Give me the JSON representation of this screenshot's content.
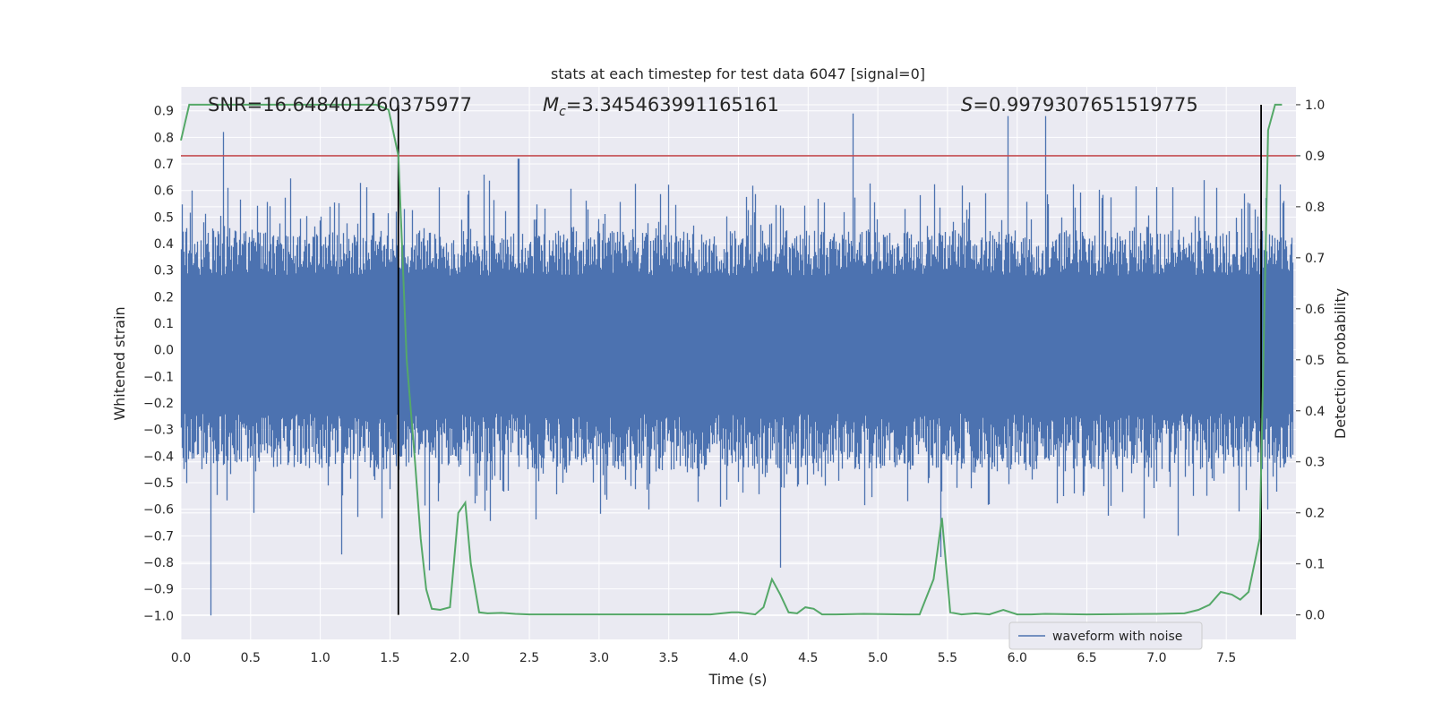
{
  "chart_data": {
    "type": "line",
    "title": "stats at each timestep for test data 6047 [signal=0]",
    "xlabel": "Time (s)",
    "ylabel_left": "Whitened strain",
    "ylabel_right": "Detection probability",
    "xlim": [
      0.0,
      8.0
    ],
    "ylim_left": [
      -1.09,
      0.99
    ],
    "ylim_right": [
      -0.048,
      1.035
    ],
    "x_ticks": [
      0.0,
      0.5,
      1.0,
      1.5,
      2.0,
      2.5,
      3.0,
      3.5,
      4.0,
      4.5,
      5.0,
      5.5,
      6.0,
      6.5,
      7.0,
      7.5
    ],
    "x_tick_labels": [
      "0.0",
      "0.5",
      "1.0",
      "1.5",
      "2.0",
      "2.5",
      "3.0",
      "3.5",
      "4.0",
      "4.5",
      "5.0",
      "5.5",
      "6.0",
      "6.5",
      "7.0",
      "7.5"
    ],
    "y_left_ticks": [
      0.9,
      0.8,
      0.7,
      0.6,
      0.5,
      0.4,
      0.3,
      0.2,
      0.1,
      0.0,
      -0.1,
      -0.2,
      -0.3,
      -0.4,
      -0.5,
      -0.6,
      -0.7,
      -0.8,
      -0.9,
      -1.0
    ],
    "y_left_tick_labels": [
      "0.9",
      "0.8",
      "0.7",
      "0.6",
      "0.5",
      "0.4",
      "0.3",
      "0.2",
      "0.1",
      "0.0",
      "−0.1",
      "−0.2",
      "−0.3",
      "−0.4",
      "−0.5",
      "−0.6",
      "−0.7",
      "−0.8",
      "−0.9",
      "−1.0"
    ],
    "y_right_ticks": [
      1.0,
      0.9,
      0.8,
      0.7,
      0.6,
      0.5,
      0.4,
      0.3,
      0.2,
      0.1,
      0.0
    ],
    "y_right_tick_labels": [
      "1.0",
      "0.9",
      "0.8",
      "0.7",
      "0.6",
      "0.5",
      "0.4",
      "0.3",
      "0.2",
      "0.1",
      "0.0"
    ],
    "annotations": {
      "snr": "SNR=16.648401260375977",
      "mc_symbol": "M",
      "mc_sub": "c",
      "mc_value": "=3.345463991165161",
      "s_symbol": "S",
      "s_value": "=0.9979307651519775"
    },
    "threshold": {
      "axis": "right",
      "value": 0.9,
      "color": "#c44e52"
    },
    "vertical_markers": [
      1.56,
      7.75
    ],
    "waveform": {
      "name": "waveform with noise",
      "color": "#4c72b0",
      "sample_rate": 2048,
      "envelope_lower": -0.45,
      "envelope_upper": 0.45,
      "max_peak": 0.9,
      "min_trough": -1.0,
      "notable_peaks": [
        [
          0.3,
          0.82
        ],
        [
          4.82,
          0.89
        ],
        [
          5.93,
          0.88
        ],
        [
          6.2,
          0.88
        ],
        [
          2.42,
          0.72
        ]
      ],
      "notable_troughs": [
        [
          0.21,
          -1.0
        ],
        [
          1.15,
          -0.77
        ],
        [
          1.78,
          -0.83
        ],
        [
          4.3,
          -0.82
        ],
        [
          5.45,
          -0.78
        ],
        [
          7.15,
          -0.7
        ]
      ]
    },
    "detection_probability": {
      "color": "#55a868",
      "x": [
        0.0,
        0.06,
        0.13,
        0.2,
        0.3,
        0.5,
        0.8,
        1.0,
        1.2,
        1.4,
        1.49,
        1.56,
        1.62,
        1.68,
        1.72,
        1.76,
        1.8,
        1.86,
        1.93,
        1.99,
        2.04,
        2.08,
        2.14,
        2.2,
        2.3,
        2.4,
        2.5,
        2.6,
        3.0,
        3.5,
        3.7,
        3.8,
        3.95,
        4.0,
        4.06,
        4.12,
        4.18,
        4.24,
        4.3,
        4.36,
        4.42,
        4.48,
        4.54,
        4.6,
        4.7,
        4.9,
        5.2,
        5.3,
        5.4,
        5.46,
        5.52,
        5.6,
        5.7,
        5.8,
        5.9,
        6.0,
        6.1,
        6.2,
        6.5,
        7.0,
        7.2,
        7.3,
        7.38,
        7.46,
        7.54,
        7.6,
        7.66,
        7.74,
        7.8,
        7.85,
        7.9
      ],
      "y": [
        0.93,
        1.0,
        1.0,
        1.0,
        1.0,
        1.0,
        1.0,
        1.0,
        1.0,
        1.0,
        0.99,
        0.9,
        0.5,
        0.3,
        0.15,
        0.05,
        0.012,
        0.01,
        0.015,
        0.2,
        0.22,
        0.1,
        0.005,
        0.003,
        0.004,
        0.002,
        0.001,
        0.001,
        0.001,
        0.001,
        0.001,
        0.001,
        0.005,
        0.005,
        0.003,
        0.001,
        0.015,
        0.07,
        0.04,
        0.005,
        0.003,
        0.015,
        0.012,
        0.001,
        0.001,
        0.002,
        0.001,
        0.001,
        0.07,
        0.19,
        0.005,
        0.001,
        0.003,
        0.001,
        0.01,
        0.001,
        0.001,
        0.002,
        0.001,
        0.002,
        0.003,
        0.01,
        0.02,
        0.045,
        0.04,
        0.03,
        0.045,
        0.15,
        0.95,
        1.0,
        1.0
      ]
    },
    "legend": {
      "entries": [
        "waveform with noise"
      ],
      "placement": "lower-right"
    },
    "grid": true
  }
}
